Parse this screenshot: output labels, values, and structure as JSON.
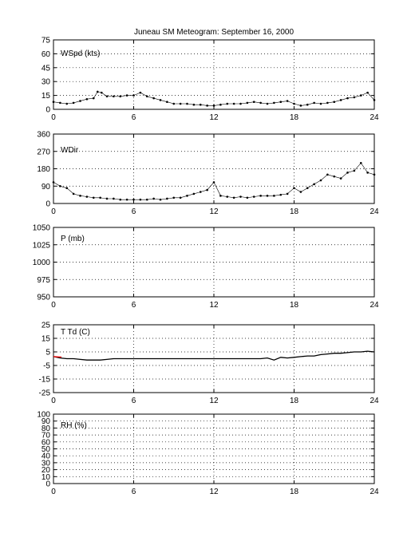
{
  "title": "Juneau SM Meteogram: September 16, 2000",
  "colors": {
    "series": "#000000",
    "dewpoint": "#ff0000"
  },
  "chart_data": [
    {
      "type": "scatter",
      "panel_label": "WSpd (kts)",
      "xlim": [
        0,
        24
      ],
      "xticks": [
        0,
        6,
        12,
        18,
        24
      ],
      "ylim": [
        0,
        75
      ],
      "yticks": [
        0,
        15,
        30,
        45,
        60,
        75
      ],
      "grid": true,
      "x": [
        0,
        0.5,
        1,
        1.5,
        2,
        2.5,
        3,
        3.3,
        3.6,
        4,
        4.5,
        5,
        5.5,
        6,
        6.5,
        7,
        7.5,
        8,
        8.5,
        9,
        9.5,
        10,
        10.5,
        11,
        11.5,
        12,
        12.5,
        13,
        13.5,
        14,
        14.5,
        15,
        15.5,
        16,
        16.5,
        17,
        17.5,
        18,
        18.5,
        19,
        19.5,
        20,
        20.5,
        21,
        21.5,
        22,
        22.5,
        23,
        23.5,
        24
      ],
      "y": [
        8,
        7,
        6,
        7,
        9,
        11,
        12,
        19,
        18,
        14,
        14,
        14,
        15,
        15,
        18,
        14,
        12,
        10,
        8,
        6,
        6,
        6,
        5,
        5,
        4,
        4,
        5,
        6,
        6,
        6,
        7,
        8,
        7,
        6,
        7,
        8,
        9,
        6,
        4,
        5,
        7,
        6,
        7,
        8,
        10,
        12,
        13,
        15,
        18,
        10
      ]
    },
    {
      "type": "scatter",
      "panel_label": "WDir",
      "xlim": [
        0,
        24
      ],
      "xticks": [
        0,
        6,
        12,
        18,
        24
      ],
      "ylim": [
        0,
        360
      ],
      "yticks": [
        0,
        90,
        180,
        270,
        360
      ],
      "grid": true,
      "x": [
        0,
        0.5,
        1,
        1.5,
        2,
        2.5,
        3,
        3.5,
        4,
        4.5,
        5,
        5.5,
        6,
        6.5,
        7,
        7.5,
        8,
        8.5,
        9,
        9.5,
        10,
        10.5,
        11,
        11.5,
        12,
        12.5,
        13,
        13.5,
        14,
        14.5,
        15,
        15.5,
        16,
        16.5,
        17,
        17.5,
        18,
        18.5,
        19,
        19.5,
        20,
        20.5,
        21,
        21.5,
        22,
        22.5,
        23,
        23.5,
        24
      ],
      "y": [
        110,
        90,
        80,
        50,
        40,
        35,
        30,
        30,
        25,
        25,
        20,
        20,
        20,
        20,
        20,
        25,
        20,
        25,
        30,
        30,
        40,
        50,
        60,
        70,
        110,
        40,
        35,
        30,
        35,
        30,
        35,
        40,
        40,
        40,
        45,
        50,
        80,
        60,
        80,
        100,
        120,
        150,
        140,
        130,
        160,
        170,
        210,
        160,
        150
      ]
    },
    {
      "type": "line",
      "panel_label": "P (mb)",
      "xlim": [
        0,
        24
      ],
      "xticks": [
        0,
        6,
        12,
        18,
        24
      ],
      "ylim": [
        950,
        1050
      ],
      "yticks": [
        950,
        975,
        1000,
        1025,
        1050
      ],
      "grid": true,
      "x": [],
      "y": []
    },
    {
      "type": "line",
      "panel_label": "T Td (C)",
      "xlim": [
        0,
        24
      ],
      "xticks": [
        0,
        6,
        12,
        18,
        24
      ],
      "ylim": [
        -25,
        25
      ],
      "yticks": [
        -25,
        -15,
        -5,
        5,
        15,
        25
      ],
      "grid": true,
      "series": [
        {
          "x": [
            0,
            0.5,
            1,
            1.5,
            2,
            2.5,
            3,
            3.5,
            4,
            4.5,
            5,
            5.5,
            6,
            6.5,
            7,
            7.5,
            8,
            8.5,
            9,
            9.5,
            10,
            10.5,
            11,
            11.5,
            12,
            12.5,
            13,
            13.5,
            14,
            14.5,
            15,
            15.5,
            16,
            16.5,
            17,
            17.5,
            18,
            18.5,
            19,
            19.5,
            20,
            20.5,
            21,
            21.5,
            22,
            22.5,
            23,
            23.5,
            24
          ],
          "y": [
            1.5,
            0.5,
            0,
            0,
            -0.5,
            -1,
            -1,
            -1,
            -0.5,
            0,
            0,
            0,
            0,
            0,
            0,
            0,
            0,
            0,
            0,
            0,
            0,
            0,
            0,
            0,
            0,
            0,
            0,
            0,
            0,
            0,
            0,
            0,
            0.5,
            -1,
            1,
            0.5,
            1,
            1.5,
            2,
            2,
            3,
            3.5,
            4,
            4,
            4.5,
            5,
            5,
            5.5,
            5
          ]
        },
        {
          "x": [
            0,
            0.6
          ],
          "y": [
            1.5,
            1.2
          ]
        }
      ]
    },
    {
      "type": "line",
      "panel_label": "RH (%)",
      "xlim": [
        0,
        24
      ],
      "xticks": [
        0,
        6,
        12,
        18,
        24
      ],
      "ylim": [
        0,
        100
      ],
      "yticks": [
        0,
        10,
        20,
        30,
        40,
        50,
        60,
        70,
        80,
        90,
        100
      ],
      "grid": true,
      "x": [],
      "y": []
    }
  ]
}
